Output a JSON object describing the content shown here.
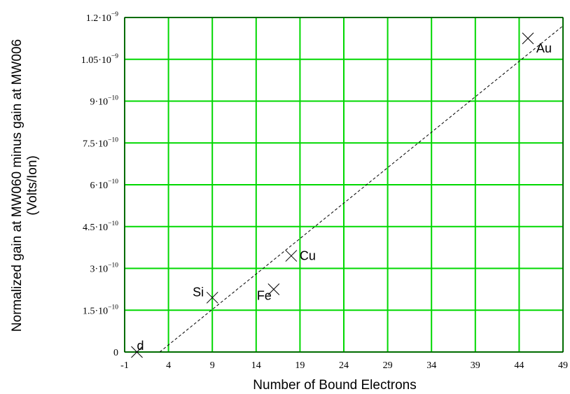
{
  "chart_data": {
    "type": "scatter",
    "xlabel": "Number of Bound Electrons",
    "ylabel_lines": [
      "Normalized gain at MW060 minus gain at MW006",
      "(Volts/Ion)"
    ],
    "xlim": [
      -1,
      49
    ],
    "ylim": [
      0,
      1.2e-09
    ],
    "x_ticks": [
      -1,
      4,
      9,
      14,
      19,
      24,
      29,
      34,
      39,
      44,
      49
    ],
    "y_ticks": [
      {
        "value": 0,
        "mantissa": "0",
        "exp": ""
      },
      {
        "value": 1.5e-10,
        "mantissa": "1.5·10",
        "exp": "−10"
      },
      {
        "value": 3e-10,
        "mantissa": "3·10",
        "exp": "−10"
      },
      {
        "value": 4.5e-10,
        "mantissa": "4.5·10",
        "exp": "−10"
      },
      {
        "value": 6e-10,
        "mantissa": "6·10",
        "exp": "−10"
      },
      {
        "value": 7.5e-10,
        "mantissa": "7.5·10",
        "exp": "−10"
      },
      {
        "value": 9e-10,
        "mantissa": "9·10",
        "exp": "−10"
      },
      {
        "value": 1.05e-09,
        "mantissa": "1.05·10",
        "exp": "−9"
      },
      {
        "value": 1.2e-09,
        "mantissa": "1.2·10",
        "exp": "−9"
      }
    ],
    "points": [
      {
        "label": "d",
        "x": 0.4,
        "y": 0
      },
      {
        "label": "Si",
        "x": 9,
        "y": 1.95e-10
      },
      {
        "label": "Fe",
        "x": 16,
        "y": 2.25e-10
      },
      {
        "label": "Cu",
        "x": 18,
        "y": 3.45e-10
      },
      {
        "label": "Au",
        "x": 45,
        "y": 1.125e-09
      }
    ],
    "fit_line": {
      "x": [
        3,
        49
      ],
      "y": [
        0,
        1.17e-09
      ],
      "style": "dashed"
    },
    "grid": true,
    "colors": {
      "grid": "#00d800",
      "plot_border": "#000000",
      "markers": "#000000",
      "fit_line": "#000000"
    }
  }
}
